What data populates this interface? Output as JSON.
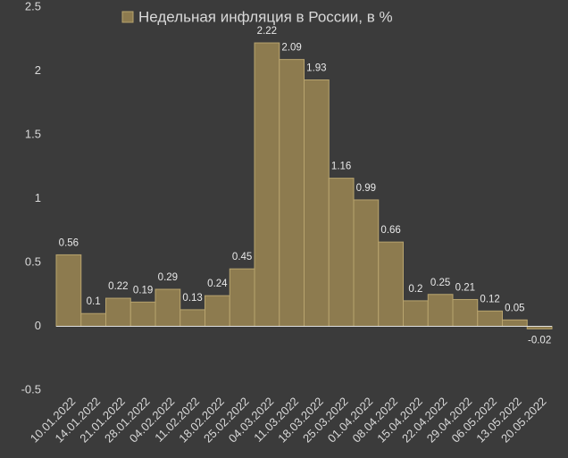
{
  "chart_data": {
    "type": "bar",
    "categories": [
      "10.01.2022",
      "14.01.2022",
      "21.01.2022",
      "28.01.2022",
      "04.02.2022",
      "11.02.2022",
      "18.02.2022",
      "25.02.2022",
      "04.03.2022",
      "11.03.2022",
      "18.03.2022",
      "25.03.2022",
      "01.04.2022",
      "08.04.2022",
      "15.04.2022",
      "22.04.2022",
      "29.04.2022",
      "06.05.2022",
      "13.05.2022",
      "20.05.2022"
    ],
    "series": [
      {
        "name": "Недельная инфляция в России, в %",
        "color": "#8d7b4f",
        "values": [
          0.56,
          0.1,
          0.22,
          0.19,
          0.29,
          0.13,
          0.24,
          0.45,
          2.22,
          2.09,
          1.93,
          1.16,
          0.99,
          0.66,
          0.2,
          0.25,
          0.21,
          0.12,
          0.05,
          -0.02
        ]
      }
    ],
    "ylim": [
      -0.5,
      2.5
    ],
    "yticks": [
      -0.5,
      0,
      0.5,
      1,
      1.5,
      2,
      2.5
    ],
    "grid": false,
    "legend": "top"
  }
}
